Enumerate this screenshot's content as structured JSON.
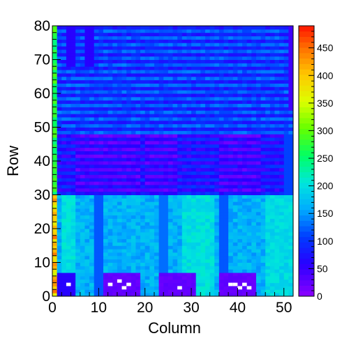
{
  "chart_data": {
    "type": "heatmap",
    "title": "",
    "xlabel": "Column",
    "ylabel": "Row",
    "xlim": [
      0,
      52
    ],
    "ylim": [
      0,
      80
    ],
    "zlim": [
      0,
      490
    ],
    "x_ticks": [
      0,
      10,
      20,
      30,
      40,
      50
    ],
    "y_ticks": [
      0,
      10,
      20,
      30,
      40,
      50,
      60,
      70,
      80
    ],
    "colorbar_ticks": [
      0,
      50,
      100,
      150,
      200,
      250,
      300,
      350,
      400,
      450
    ],
    "grid": false,
    "colormap": "rainbow",
    "description_regions": [
      {
        "cols": [
          0,
          52
        ],
        "rows": [
          48,
          80
        ],
        "approx_value": 95
      },
      {
        "cols": [
          0,
          52
        ],
        "rows": [
          30,
          48
        ],
        "approx_value": 60
      },
      {
        "cols": [
          0,
          52
        ],
        "rows": [
          0,
          30
        ],
        "approx_value": 170
      },
      {
        "cols": [
          11,
          19
        ],
        "rows": [
          1,
          6
        ],
        "approx_value": 15
      },
      {
        "cols": [
          23,
          31
        ],
        "rows": [
          1,
          6
        ],
        "approx_value": 15
      },
      {
        "cols": [
          36,
          44
        ],
        "rows": [
          1,
          6
        ],
        "approx_value": 15
      }
    ]
  }
}
